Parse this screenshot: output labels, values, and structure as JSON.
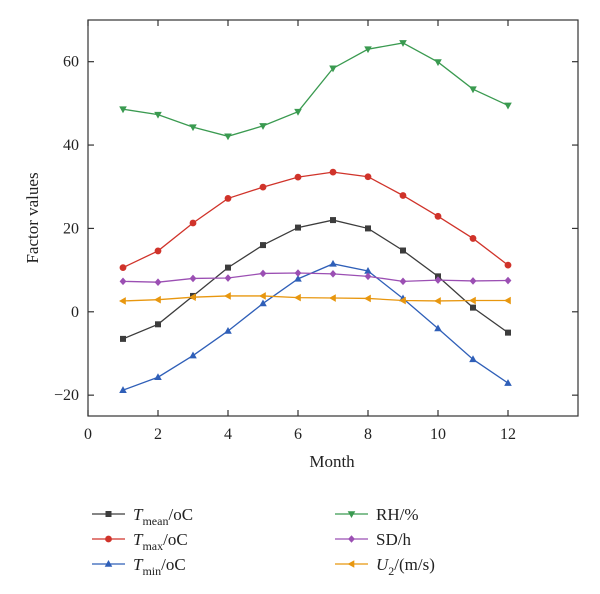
{
  "chart_data": {
    "type": "line",
    "xlabel": "Month",
    "ylabel": "Factor values",
    "xlim": [
      0,
      14
    ],
    "ylim": [
      -25,
      70
    ],
    "xticks": [
      0,
      2,
      4,
      6,
      8,
      10,
      12
    ],
    "xtick_labels": [
      "0",
      "2",
      "4",
      "6",
      "8",
      "10",
      "12"
    ],
    "yticks": [
      -20,
      0,
      20,
      40,
      60
    ],
    "ytick_labels": [
      "−20",
      "0",
      "20",
      "40",
      "60"
    ],
    "grid": false,
    "legend_position": "below",
    "x": [
      1,
      2,
      3,
      4,
      5,
      6,
      7,
      8,
      9,
      10,
      11,
      12
    ],
    "series": [
      {
        "name": "Tmean/oC",
        "name_main": "T",
        "name_sub": "mean",
        "name_tail": "/oC",
        "color": "#3c3c3c",
        "marker": "square",
        "values": [
          -6.5,
          -3.0,
          3.8,
          10.6,
          16.0,
          20.2,
          22.0,
          20.0,
          14.7,
          8.5,
          1.0,
          -5.0
        ]
      },
      {
        "name": "Tmax/oC",
        "name_main": "T",
        "name_sub": "max",
        "name_tail": "/oC",
        "color": "#d0332a",
        "marker": "circle",
        "values": [
          10.6,
          14.6,
          21.3,
          27.2,
          29.9,
          32.3,
          33.5,
          32.4,
          27.9,
          22.9,
          17.6,
          11.2
        ]
      },
      {
        "name": "Tmin/oC",
        "name_main": "T",
        "name_sub": "min",
        "name_tail": "/oC",
        "color": "#2f5fb8",
        "marker": "triangle-up",
        "values": [
          -18.8,
          -15.7,
          -10.5,
          -4.6,
          2.0,
          7.9,
          11.5,
          9.8,
          3.2,
          -4.0,
          -11.4,
          -17.1
        ]
      },
      {
        "name": "RH/%",
        "name_main": "RH/%",
        "name_sub": "",
        "name_tail": "",
        "color": "#3a9a50",
        "marker": "triangle-down",
        "values": [
          48.6,
          47.3,
          44.3,
          42.1,
          44.6,
          48.0,
          58.4,
          63.0,
          64.5,
          59.9,
          53.4,
          49.5
        ]
      },
      {
        "name": "SD/h",
        "name_main": "SD/h",
        "name_sub": "",
        "name_tail": "",
        "color": "#9b4fb3",
        "marker": "diamond",
        "values": [
          7.3,
          7.1,
          8.0,
          8.1,
          9.2,
          9.3,
          9.1,
          8.5,
          7.3,
          7.6,
          7.4,
          7.5
        ]
      },
      {
        "name": "U2/(m/s)",
        "name_main": "U",
        "name_sub": "2",
        "name_tail": "/(m/s)",
        "color": "#e8970f",
        "marker": "triangle-left",
        "values": [
          2.6,
          2.9,
          3.5,
          3.8,
          3.8,
          3.4,
          3.3,
          3.2,
          2.7,
          2.6,
          2.7,
          2.7
        ]
      }
    ]
  }
}
